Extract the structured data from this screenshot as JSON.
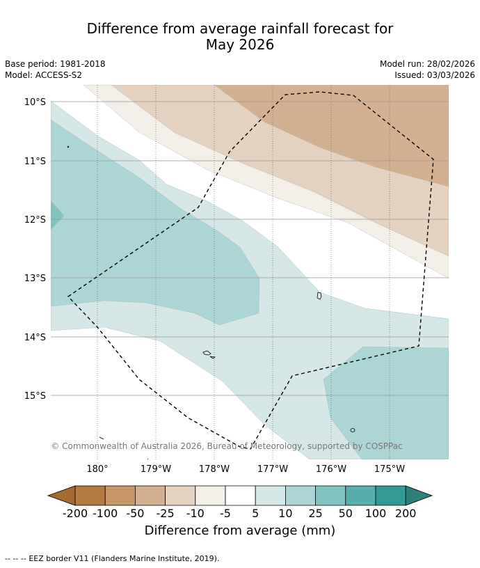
{
  "title": {
    "line1": "Difference from average rainfall forecast for",
    "line2": "May 2026"
  },
  "meta": {
    "base_period": "Base period: 1981-2018",
    "model": "Model: ACCESS-S2",
    "model_run": "Model run: 28/02/2026",
    "issued": "Issued: 03/03/2026"
  },
  "map": {
    "lat_labels": [
      "10°S",
      "11°S",
      "12°S",
      "13°S",
      "14°S",
      "15°S"
    ],
    "lon_labels": [
      "180°",
      "179°W",
      "178°W",
      "177°W",
      "176°W",
      "175°W"
    ],
    "copyright": "© Commonwealth of Australia 2026, Bureau of Meteorology, supported by COSPPac",
    "category_colors": {
      "m50_m25": "#d3b190",
      "m25_m10": "#e4d1bf",
      "m10_m5": "#f3eee8",
      "p5_p10": "#d5e8e7",
      "p10_p25": "#acd6d5",
      "p25_p50": "#83c3c2"
    }
  },
  "colorbar": {
    "ticks": [
      "-200",
      "-100",
      "-50",
      "-25",
      "-10",
      "-5",
      "5",
      "10",
      "25",
      "50",
      "100",
      "200"
    ],
    "colors": [
      "#a36a31",
      "#b37a42",
      "#c39569",
      "#d3b190",
      "#e4d1bf",
      "#f3eee8",
      "#ffffff",
      "#d5e8e7",
      "#acd6d5",
      "#83c3c2",
      "#59aeac",
      "#339a97",
      "#2e807d"
    ],
    "label": "Difference from average (mm)"
  },
  "footer": {
    "legend_symbol": "-- -- --",
    "legend_text": "EEZ border V11 (Flanders Marine Institute, 2019)."
  }
}
